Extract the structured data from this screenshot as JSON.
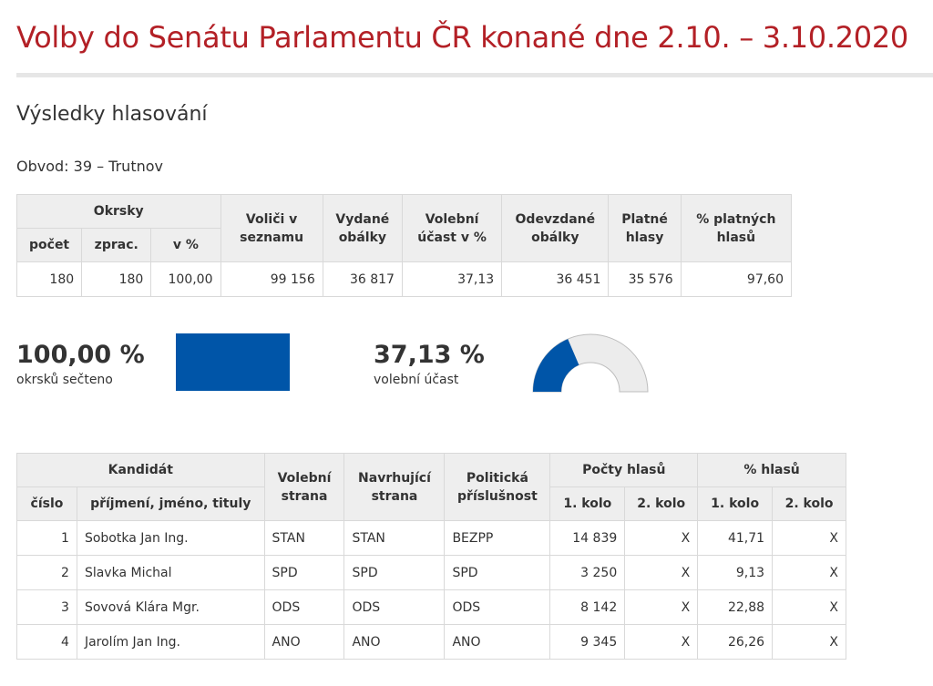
{
  "header": {
    "title": "Volby do Senátu Parlamentu ČR konané dne 2.10. – 3.10.2020",
    "subtitle": "Výsledky hlasování",
    "district": "Obvod: 39 – Trutnov"
  },
  "summary_table": {
    "headers": {
      "okrsky": "Okrsky",
      "pocet": "počet",
      "zprac": "zprac.",
      "v_pct": "v %",
      "volici": "Voliči v seznamu",
      "vydane": "Vydané obálky",
      "ucast": "Volební účast v %",
      "odevzdane": "Odevzdané obálky",
      "platne": "Platné hlasy",
      "pct_platnych": "% platných hlasů"
    },
    "row": {
      "pocet": "180",
      "zprac": "180",
      "v_pct": "100,00",
      "volici": "99 156",
      "vydane": "36 817",
      "ucast": "37,13",
      "odevzdane": "36 451",
      "platne": "35 576",
      "pct_platnych": "97,60"
    }
  },
  "stats": {
    "processed_value": "100,00 %",
    "processed_label": "okrsků sečteno",
    "processed_fraction": 1.0,
    "turnout_value": "37,13 %",
    "turnout_label": "volební účast",
    "turnout_fraction": 0.3713
  },
  "candidate_table": {
    "headers": {
      "kandidat": "Kandidát",
      "cislo": "číslo",
      "jmeno": "příjmení, jméno, tituly",
      "volebni_strana": "Volební strana",
      "navrhujici_strana": "Navrhující strana",
      "politicka": "Politická příslušnost",
      "pocty": "Počty hlasů",
      "pct": "% hlasů",
      "kolo1": "1. kolo",
      "kolo2": "2. kolo"
    },
    "rows": [
      {
        "cislo": "1",
        "jmeno": "Sobotka Jan Ing.",
        "volebni": "STAN",
        "navrhujici": "STAN",
        "politicka": "BEZPP",
        "hlasy1": "14 839",
        "hlasy2": "X",
        "pct1": "41,71",
        "pct2": "X"
      },
      {
        "cislo": "2",
        "jmeno": "Slavka Michal",
        "volebni": "SPD",
        "navrhujici": "SPD",
        "politicka": "SPD",
        "hlasy1": "3 250",
        "hlasy2": "X",
        "pct1": "9,13",
        "pct2": "X"
      },
      {
        "cislo": "3",
        "jmeno": "Sovová Klára Mgr.",
        "volebni": "ODS",
        "navrhujici": "ODS",
        "politicka": "ODS",
        "hlasy1": "8 142",
        "hlasy2": "X",
        "pct1": "22,88",
        "pct2": "X"
      },
      {
        "cislo": "4",
        "jmeno": "Jarolím Jan Ing.",
        "volebni": "ANO",
        "navrhujici": "ANO",
        "politicka": "ANO",
        "hlasy1": "9 345",
        "hlasy2": "X",
        "pct1": "26,26",
        "pct2": "X"
      }
    ]
  },
  "colors": {
    "title_red": "#b32026",
    "accent_blue": "#0055a8",
    "gauge_bg": "#ececec",
    "header_bg": "#eeeeee"
  }
}
